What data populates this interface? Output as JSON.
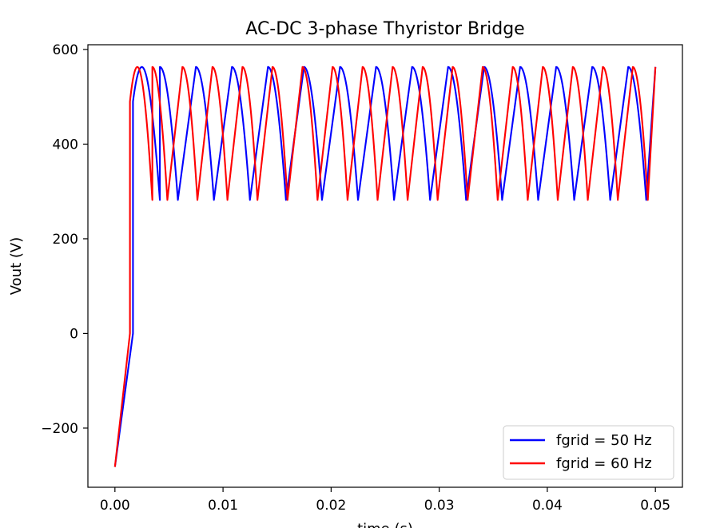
{
  "chart_data": {
    "type": "line",
    "title": "AC-DC 3-phase Thyristor Bridge",
    "xlabel": "time (s)",
    "ylabel": "Vout (V)",
    "xlim": [
      -0.0025,
      0.0525
    ],
    "ylim": [
      -325,
      610
    ],
    "xticks": [
      0.0,
      0.01,
      0.02,
      0.03,
      0.04,
      0.05
    ],
    "xtick_labels": [
      "0.00",
      "0.01",
      "0.02",
      "0.03",
      "0.04",
      "0.05"
    ],
    "yticks": [
      -200,
      0,
      200,
      400,
      600
    ],
    "ytick_labels": [
      "−200",
      "0",
      "200",
      "400",
      "600"
    ],
    "grid": false,
    "legend_position": "lower-right",
    "series": [
      {
        "name": "fgrid = 50 Hz",
        "color": "#0000ff",
        "frequency_hz": 50,
        "startup_points": [
          [
            0.0,
            -282
          ],
          [
            0.00167,
            0
          ],
          [
            0.00167,
            490
          ]
        ],
        "peak": 563,
        "trough": 282,
        "commutation_period": 0.003333,
        "x_end": 0.05
      },
      {
        "name": "fgrid = 60 Hz",
        "color": "#ff0000",
        "frequency_hz": 60,
        "startup_points": [
          [
            0.0,
            -282
          ],
          [
            0.00139,
            0
          ],
          [
            0.00139,
            490
          ]
        ],
        "peak": 563,
        "trough": 282,
        "commutation_period": 0.002778,
        "x_end": 0.05
      }
    ]
  }
}
